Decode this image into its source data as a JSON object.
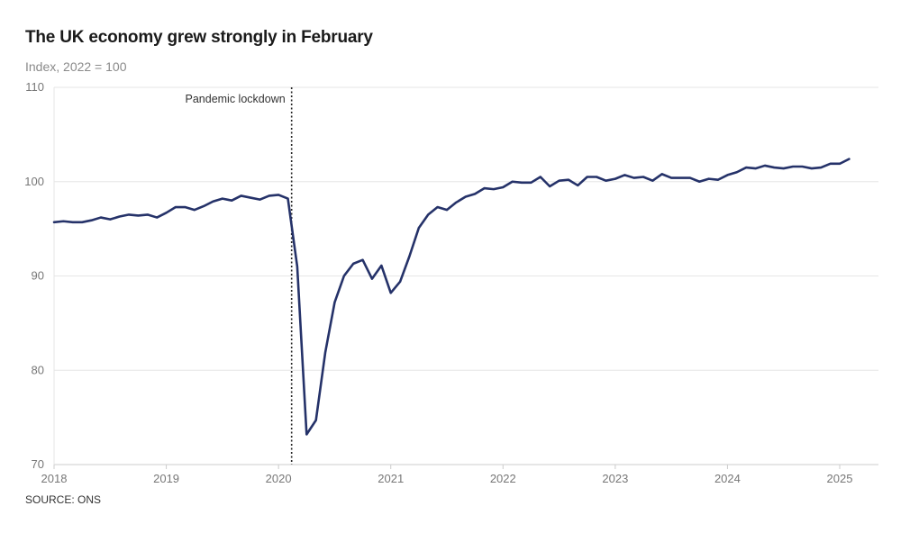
{
  "header": {
    "title": "The UK economy grew strongly in February",
    "subtitle": "Index, 2022 = 100"
  },
  "footer": {
    "source": "SOURCE: ONS"
  },
  "colors": {
    "line": "#253269",
    "grid": "#e6e6e6",
    "axis": "#cccccc",
    "annotation_line": "#222222"
  },
  "chart_data": {
    "type": "line",
    "title": "The UK economy grew strongly in February",
    "subtitle": "Index, 2022 = 100",
    "xlabel": "",
    "ylabel": "",
    "ylim": [
      70,
      110
    ],
    "xlim": [
      "2018-01",
      "2025-06"
    ],
    "yticks": [
      70,
      80,
      90,
      100,
      110
    ],
    "xticks": [
      "2018",
      "2019",
      "2020",
      "2021",
      "2022",
      "2023",
      "2024",
      "2025"
    ],
    "grid": true,
    "annotations": [
      {
        "x": "2020-03",
        "text": "Pandemic lockdown",
        "style": "dotted vertical line"
      }
    ],
    "series": [
      {
        "x": [
          "2018-01",
          "2018-02",
          "2018-03",
          "2018-04",
          "2018-05",
          "2018-06",
          "2018-07",
          "2018-08",
          "2018-09",
          "2018-10",
          "2018-11",
          "2018-12",
          "2019-01",
          "2019-02",
          "2019-03",
          "2019-04",
          "2019-05",
          "2019-06",
          "2019-07",
          "2019-08",
          "2019-09",
          "2019-10",
          "2019-11",
          "2019-12",
          "2020-01",
          "2020-02",
          "2020-03",
          "2020-04",
          "2020-05",
          "2020-06",
          "2020-07",
          "2020-08",
          "2020-09",
          "2020-10",
          "2020-11",
          "2020-12",
          "2021-01",
          "2021-02",
          "2021-03",
          "2021-04",
          "2021-05",
          "2021-06",
          "2021-07",
          "2021-08",
          "2021-09",
          "2021-10",
          "2021-11",
          "2021-12",
          "2022-01",
          "2022-02",
          "2022-03",
          "2022-04",
          "2022-05",
          "2022-06",
          "2022-07",
          "2022-08",
          "2022-09",
          "2022-10",
          "2022-11",
          "2022-12",
          "2023-01",
          "2023-02",
          "2023-03",
          "2023-04",
          "2023-05",
          "2023-06",
          "2023-07",
          "2023-08",
          "2023-09",
          "2023-10",
          "2023-11",
          "2023-12",
          "2024-01",
          "2024-02",
          "2024-03",
          "2024-04",
          "2024-05",
          "2024-06",
          "2024-07",
          "2024-08",
          "2024-09",
          "2024-10",
          "2024-11",
          "2024-12",
          "2025-01",
          "2025-02"
        ],
        "values": [
          95.7,
          95.8,
          95.7,
          95.7,
          95.9,
          96.2,
          96.0,
          96.3,
          96.5,
          96.4,
          96.5,
          96.2,
          96.7,
          97.3,
          97.3,
          97.0,
          97.4,
          97.9,
          98.2,
          98.0,
          98.5,
          98.3,
          98.1,
          98.5,
          98.6,
          98.2,
          91.0,
          73.2,
          74.7,
          81.9,
          87.2,
          90.0,
          91.3,
          91.7,
          89.7,
          91.1,
          88.2,
          89.4,
          92.1,
          95.1,
          96.5,
          97.3,
          97.0,
          97.8,
          98.4,
          98.7,
          99.3,
          99.2,
          99.4,
          100.0,
          99.9,
          99.9,
          100.5,
          99.5,
          100.1,
          100.2,
          99.6,
          100.5,
          100.5,
          100.1,
          100.3,
          100.7,
          100.4,
          100.5,
          100.1,
          100.8,
          100.4,
          100.4,
          100.4,
          100.0,
          100.3,
          100.2,
          100.7,
          101.0,
          101.5,
          101.4,
          101.7,
          101.5,
          101.4,
          101.6,
          101.6,
          101.4,
          101.5,
          101.9,
          101.9,
          102.4
        ]
      }
    ]
  }
}
